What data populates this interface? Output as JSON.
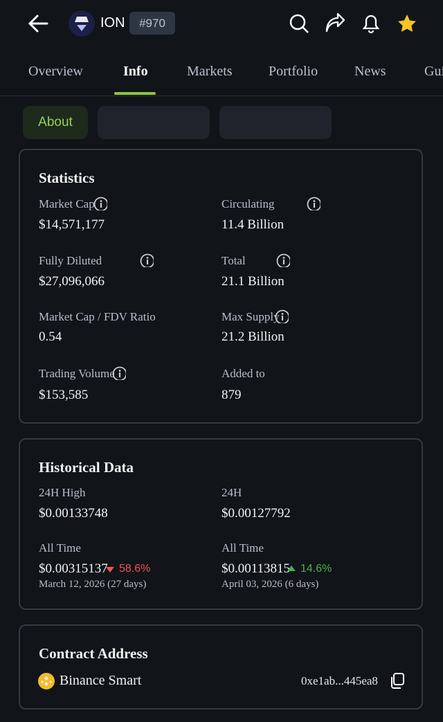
{
  "header": {
    "title": "ION",
    "rank": "#970"
  },
  "tabs": [
    "Overview",
    "Info",
    "Markets",
    "Portfolio",
    "News",
    "Gui"
  ],
  "chips": [
    "About"
  ],
  "statistics": {
    "title": "Statistics",
    "items": [
      {
        "label": "Market Cap",
        "value": "$14,571,177"
      },
      {
        "label": "Circulating",
        "value": "11.4 Billion"
      },
      {
        "label": "Fully Diluted",
        "value": "$27,096,066"
      },
      {
        "label": "Total",
        "value": "21.1 Billion"
      },
      {
        "label": "Market Cap / FDV Ratio",
        "value": "0.54"
      },
      {
        "label": "Max Supply",
        "value": "21.2 Billion"
      },
      {
        "label": "Trading Volume",
        "value": "$153,585"
      },
      {
        "label": "Added to",
        "value": "879"
      }
    ]
  },
  "historical": {
    "title": "Historical Data",
    "items": [
      {
        "label": "24H High",
        "value": "$0.00133748"
      },
      {
        "label": "24H",
        "value": "$0.00127792"
      },
      {
        "label": "All Time",
        "value": "$0.00315137",
        "change": "58.6%",
        "date": "March 12, 2026 (27 days)"
      },
      {
        "label": "All Time",
        "value": "$0.00113815",
        "change": "14.6%",
        "date": "April 03, 2026 (6 days)"
      }
    ]
  },
  "contract": {
    "title": "Contract Address",
    "chain": "Binance Smart",
    "address": "0xe1ab...445ea8"
  }
}
